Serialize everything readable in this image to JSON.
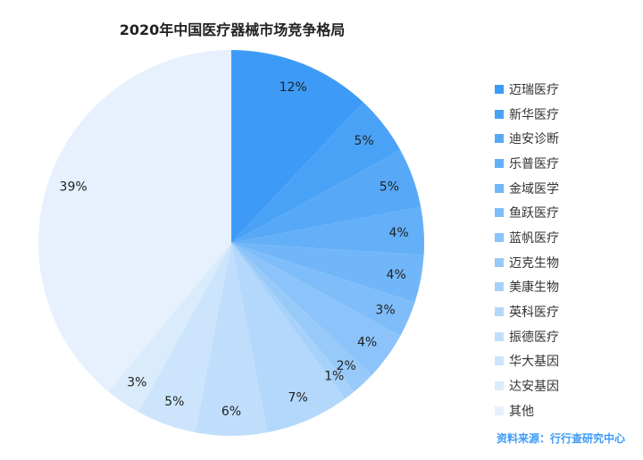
{
  "chart_data": {
    "type": "pie",
    "title": "2020年中国医疗器械市场竞争格局",
    "categories": [
      "迈瑞医疗",
      "新华医疗",
      "迪安诊断",
      "乐普医疗",
      "金域医学",
      "鱼跃医疗",
      "蓝帆医疗",
      "迈克生物",
      "美康生物",
      "英科医疗",
      "振德医疗",
      "华大基因",
      "达安基因",
      "其他"
    ],
    "values": [
      12,
      5,
      5,
      4,
      4,
      3,
      4,
      2,
      1,
      7,
      6,
      5,
      3,
      39
    ],
    "labels": [
      "12%",
      "5%",
      "5%",
      "4%",
      "4%",
      "3%",
      "4%",
      "2%",
      "1%",
      "7%",
      "6%",
      "5%",
      "3%",
      "39%"
    ],
    "colors": [
      "#3d9bf7",
      "#4aa2f7",
      "#57a9f8",
      "#64b0f8",
      "#71b6f9",
      "#7ebdf9",
      "#8bc3fa",
      "#98caf9",
      "#a6d1fa",
      "#b3d8fb",
      "#c0defb",
      "#cde5fc",
      "#daebfc",
      "#e6f1fd"
    ],
    "legend_position": "right"
  },
  "source": "资料来源：行行查研究中心"
}
